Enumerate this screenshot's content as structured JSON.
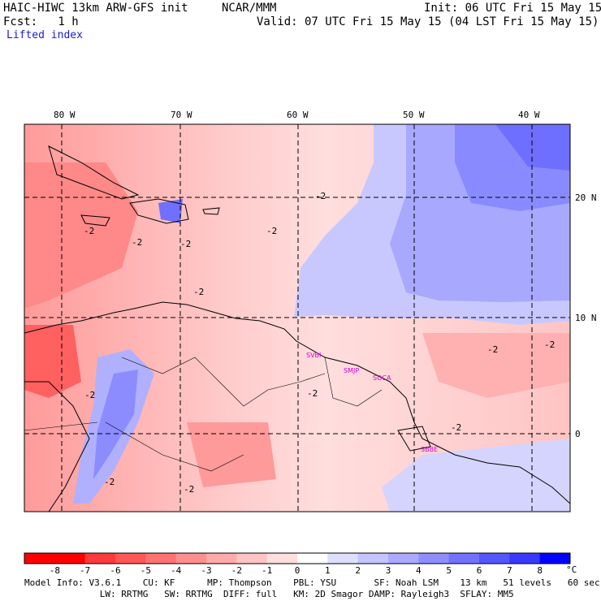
{
  "header": {
    "title": "HAIC-HIWC 13km ARW-GFS init",
    "org": "NCAR/MMM",
    "init": "Init: 06 UTC Fri 15 May 15",
    "fcst": "Fcst:   1 h",
    "valid": "Valid: 07 UTC Fri 15 May 15 (04 LST Fri 15 May 15)",
    "field": "Lifted index"
  },
  "map": {
    "lon_labels": [
      "80 W",
      "70 W",
      "60 W",
      "50 W",
      "40 W"
    ],
    "lat_labels": [
      "20 N",
      "10 N",
      "0"
    ],
    "contour_labels": [
      "-2",
      "-2",
      "-2",
      "-2",
      "-2",
      "-2",
      "-2",
      "-2",
      "-2",
      "-2",
      "-2",
      "-2",
      "-2"
    ],
    "stations": [
      "SVBI",
      "SMJP",
      "SOCA",
      "SBBE"
    ]
  },
  "colorbar": {
    "ticks": [
      "-8",
      "-7",
      "-6",
      "-5",
      "-4",
      "-3",
      "-2",
      "-1",
      "0",
      "1",
      "2",
      "3",
      "4",
      "5",
      "6",
      "7",
      "8"
    ],
    "unit": "°C",
    "colors": [
      "#ff0000",
      "#ff3a3a",
      "#ff5656",
      "#ff7272",
      "#ff8e8e",
      "#ffaaaa",
      "#ffc4c4",
      "#ffdede",
      "#ffffff",
      "#dedeff",
      "#c4c4ff",
      "#aaaaff",
      "#8e8eff",
      "#7272ff",
      "#5656ff",
      "#3a3aff",
      "#0000ff"
    ]
  },
  "footer": {
    "line1": "Model Info: V3.6.1    CU: KF      MP: Thompson    PBL: YSU       SF: Noah LSM    13 km   51 levels   60 sec",
    "line2": "              LW: RRTMG   SW: RRTMG  DIFF: full   KM: 2D Smagor DAMP: Rayleigh3  SFLAY: MM5"
  }
}
